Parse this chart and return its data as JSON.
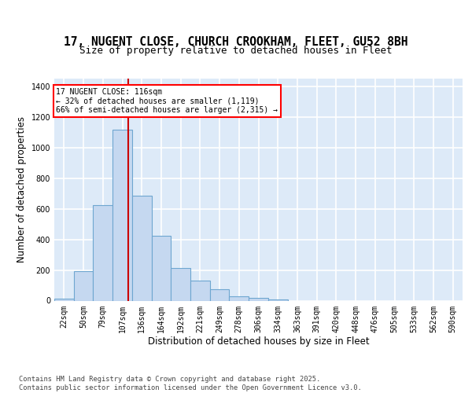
{
  "title_line1": "17, NUGENT CLOSE, CHURCH CROOKHAM, FLEET, GU52 8BH",
  "title_line2": "Size of property relative to detached houses in Fleet",
  "xlabel": "Distribution of detached houses by size in Fleet",
  "ylabel": "Number of detached properties",
  "bar_labels": [
    "22sqm",
    "50sqm",
    "79sqm",
    "107sqm",
    "136sqm",
    "164sqm",
    "192sqm",
    "221sqm",
    "249sqm",
    "278sqm",
    "306sqm",
    "334sqm",
    "363sqm",
    "391sqm",
    "420sqm",
    "448sqm",
    "476sqm",
    "505sqm",
    "533sqm",
    "562sqm",
    "590sqm"
  ],
  "bar_heights": [
    15,
    195,
    625,
    1115,
    685,
    425,
    215,
    130,
    75,
    30,
    20,
    8,
    0,
    0,
    0,
    0,
    0,
    0,
    0,
    0,
    0
  ],
  "bar_color": "#c5d8f0",
  "bar_edge_color": "#6ea6d0",
  "background_color": "#ddeaf8",
  "grid_color": "#ffffff",
  "vline_color": "#cc0000",
  "vline_x_index": 3.31,
  "annotation_text": "17 NUGENT CLOSE: 116sqm\n← 32% of detached houses are smaller (1,119)\n66% of semi-detached houses are larger (2,315) →",
  "ylim": [
    0,
    1450
  ],
  "yticks": [
    0,
    200,
    400,
    600,
    800,
    1000,
    1200,
    1400
  ],
  "footnote": "Contains HM Land Registry data © Crown copyright and database right 2025.\nContains public sector information licensed under the Open Government Licence v3.0.",
  "title_fontsize": 10.5,
  "subtitle_fontsize": 9,
  "axis_label_fontsize": 8.5,
  "tick_fontsize": 7,
  "annot_fontsize": 7
}
